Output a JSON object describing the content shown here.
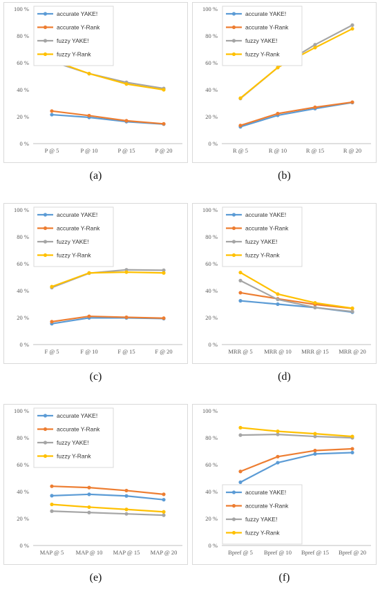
{
  "colors": {
    "accurate YAKE!": "#5B9BD5",
    "accurate Y-Rank": "#ED7D31",
    "fuzzy YAKE!": "#A5A5A5",
    "fuzzy Y-Rank": "#FFC000",
    "frame": "#d9d9d9",
    "axis": "#bfbfbf"
  },
  "chart_data": [
    {
      "type": "line",
      "caption": "(a)",
      "legend": "top-left",
      "grid": false,
      "y_ticks": [
        "0 %",
        "20 %",
        "40 %",
        "60 %",
        "80 %",
        "100 %"
      ],
      "ylim": [
        0,
        100
      ],
      "categories": [
        "P @ 5",
        "P @ 10",
        "P @ 15",
        "P @ 20"
      ],
      "series": [
        {
          "name": "accurate YAKE!",
          "values": [
            21.5,
            19.5,
            16.3,
            14.5
          ]
        },
        {
          "name": "accurate Y-Rank",
          "values": [
            24.2,
            20.8,
            17.0,
            14.7
          ]
        },
        {
          "name": "fuzzy YAKE!",
          "values": [
            61.0,
            52.0,
            45.5,
            41.0
          ]
        },
        {
          "name": "fuzzy Y-Rank",
          "values": [
            62.0,
            52.0,
            44.3,
            40.0
          ]
        }
      ]
    },
    {
      "type": "line",
      "caption": "(b)",
      "legend": "top-left",
      "grid": false,
      "y_ticks": [
        "0 %",
        "20 %",
        "40 %",
        "60 %",
        "80 %",
        "100 %"
      ],
      "ylim": [
        0,
        100
      ],
      "categories": [
        "R @ 5",
        "R @ 10",
        "R @ 15",
        "R @ 20"
      ],
      "series": [
        {
          "name": "accurate YAKE!",
          "values": [
            12.5,
            21.0,
            26.0,
            30.5
          ]
        },
        {
          "name": "accurate Y-Rank",
          "values": [
            13.5,
            22.3,
            27.0,
            30.8
          ]
        },
        {
          "name": "fuzzy YAKE!",
          "values": [
            33.5,
            56.5,
            73.5,
            88.0
          ]
        },
        {
          "name": "fuzzy Y-Rank",
          "values": [
            33.8,
            56.5,
            71.3,
            85.3
          ]
        }
      ]
    },
    {
      "type": "line",
      "caption": "(c)",
      "legend": "top-left",
      "grid": false,
      "y_ticks": [
        "0 %",
        "20 %",
        "40 %",
        "60 %",
        "80 %",
        "100 %"
      ],
      "ylim": [
        0,
        100
      ],
      "categories": [
        "F @ 5",
        "F @ 10",
        "F @ 15",
        "F @ 20"
      ],
      "series": [
        {
          "name": "accurate YAKE!",
          "values": [
            15.5,
            19.8,
            19.8,
            19.3
          ]
        },
        {
          "name": "accurate Y-Rank",
          "values": [
            17.0,
            21.0,
            20.3,
            19.6
          ]
        },
        {
          "name": "fuzzy YAKE!",
          "values": [
            42.3,
            53.0,
            55.5,
            55.2
          ]
        },
        {
          "name": "fuzzy Y-Rank",
          "values": [
            43.0,
            53.2,
            53.8,
            53.2
          ]
        }
      ]
    },
    {
      "type": "line",
      "caption": "(d)",
      "legend": "top-left",
      "grid": false,
      "y_ticks": [
        "0 %",
        "20 %",
        "40 %",
        "60 %",
        "80 %",
        "100 %"
      ],
      "ylim": [
        0,
        100
      ],
      "categories": [
        "MRR @ 5",
        "MRR @ 10",
        "MRR @ 15",
        "MRR @ 20"
      ],
      "series": [
        {
          "name": "accurate YAKE!",
          "values": [
            32.5,
            30.0,
            27.5,
            24.0
          ]
        },
        {
          "name": "accurate Y-Rank",
          "values": [
            38.5,
            34.0,
            29.8,
            26.8
          ]
        },
        {
          "name": "fuzzy YAKE!",
          "values": [
            47.5,
            33.5,
            27.5,
            24.5
          ]
        },
        {
          "name": "fuzzy Y-Rank",
          "values": [
            53.5,
            37.5,
            31.0,
            27.0
          ]
        }
      ]
    },
    {
      "type": "line",
      "caption": "(e)",
      "legend": "top-left",
      "grid": false,
      "y_ticks": [
        "0 %",
        "20 %",
        "40 %",
        "60 %",
        "80 %",
        "100 %"
      ],
      "ylim": [
        0,
        100
      ],
      "categories": [
        "MAP @ 5",
        "MAP @ 10",
        "MAP @ 15",
        "MAP @ 20"
      ],
      "series": [
        {
          "name": "accurate YAKE!",
          "values": [
            37.0,
            38.0,
            36.8,
            34.0
          ]
        },
        {
          "name": "accurate Y-Rank",
          "values": [
            44.0,
            43.0,
            40.8,
            38.0
          ]
        },
        {
          "name": "fuzzy YAKE!",
          "values": [
            25.5,
            24.5,
            23.5,
            22.5
          ]
        },
        {
          "name": "fuzzy Y-Rank",
          "values": [
            30.5,
            28.5,
            26.8,
            25.0
          ]
        }
      ]
    },
    {
      "type": "line",
      "caption": "(f)",
      "legend": "bottom-left",
      "grid": false,
      "y_ticks": [
        "0 %",
        "20 %",
        "40 %",
        "60 %",
        "80 %",
        "100 %"
      ],
      "ylim": [
        0,
        100
      ],
      "categories": [
        "Bpref @ 5",
        "Bpref @ 10",
        "Bpref @ 15",
        "Bpref @ 20"
      ],
      "series": [
        {
          "name": "accurate YAKE!",
          "values": [
            47.0,
            61.5,
            68.0,
            69.0
          ]
        },
        {
          "name": "accurate Y-Rank",
          "values": [
            55.0,
            66.0,
            70.5,
            71.8
          ]
        },
        {
          "name": "fuzzy YAKE!",
          "values": [
            82.0,
            82.5,
            81.0,
            80.0
          ]
        },
        {
          "name": "fuzzy Y-Rank",
          "values": [
            87.5,
            84.8,
            83.0,
            81.0
          ]
        }
      ]
    }
  ]
}
